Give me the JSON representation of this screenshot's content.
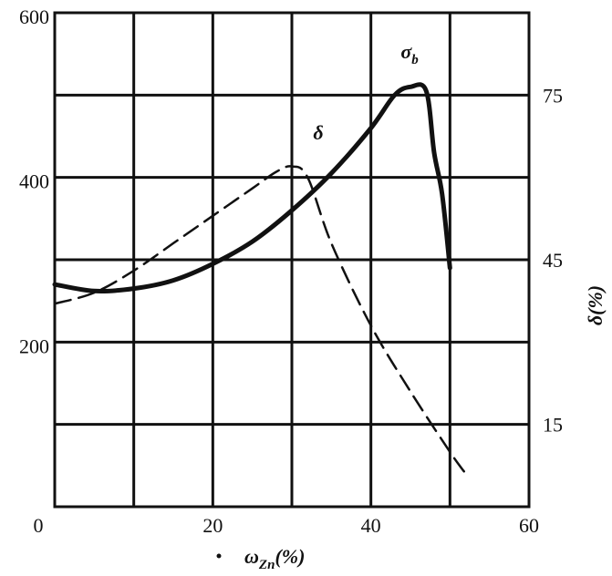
{
  "chart_data": {
    "type": "line",
    "xlabel": "ωZn(%)",
    "xlabel_main": "ω",
    "xlabel_sub": "Zn",
    "xlabel_tail": "(%)",
    "ylabel_right": "δ(%)",
    "xlim": [
      0,
      60
    ],
    "ylim_left": [
      0,
      600
    ],
    "ylim_right": [
      0,
      90
    ],
    "x_ticks": [
      "0",
      "20",
      "40",
      "60"
    ],
    "y_left_ticks": [
      "200",
      "400",
      "600"
    ],
    "y_right_ticks": [
      "15",
      "45",
      "75"
    ],
    "grid": true,
    "series": [
      {
        "name": "σb",
        "name_main": "σ",
        "name_sub": "b",
        "axis": "left",
        "style": "solid",
        "x": [
          0,
          5,
          10,
          15,
          20,
          25,
          30,
          35,
          40,
          43,
          45,
          47,
          48,
          49,
          50
        ],
        "y": [
          270,
          262,
          265,
          275,
          295,
          322,
          360,
          405,
          460,
          500,
          510,
          505,
          430,
          380,
          290
        ]
      },
      {
        "name": "δ",
        "axis": "right",
        "style": "dashed",
        "x": [
          0,
          5,
          10,
          15,
          20,
          25,
          28,
          30,
          32,
          35,
          40,
          45,
          50,
          52
        ],
        "y": [
          37,
          39,
          43,
          48,
          53,
          58,
          61,
          62,
          60,
          48,
          33,
          21,
          10,
          6
        ]
      }
    ],
    "annotations": [
      {
        "text": "δ",
        "x": 32,
        "y_left": 455
      },
      {
        "text": "σb",
        "x": 44,
        "y_left": 540
      }
    ]
  }
}
